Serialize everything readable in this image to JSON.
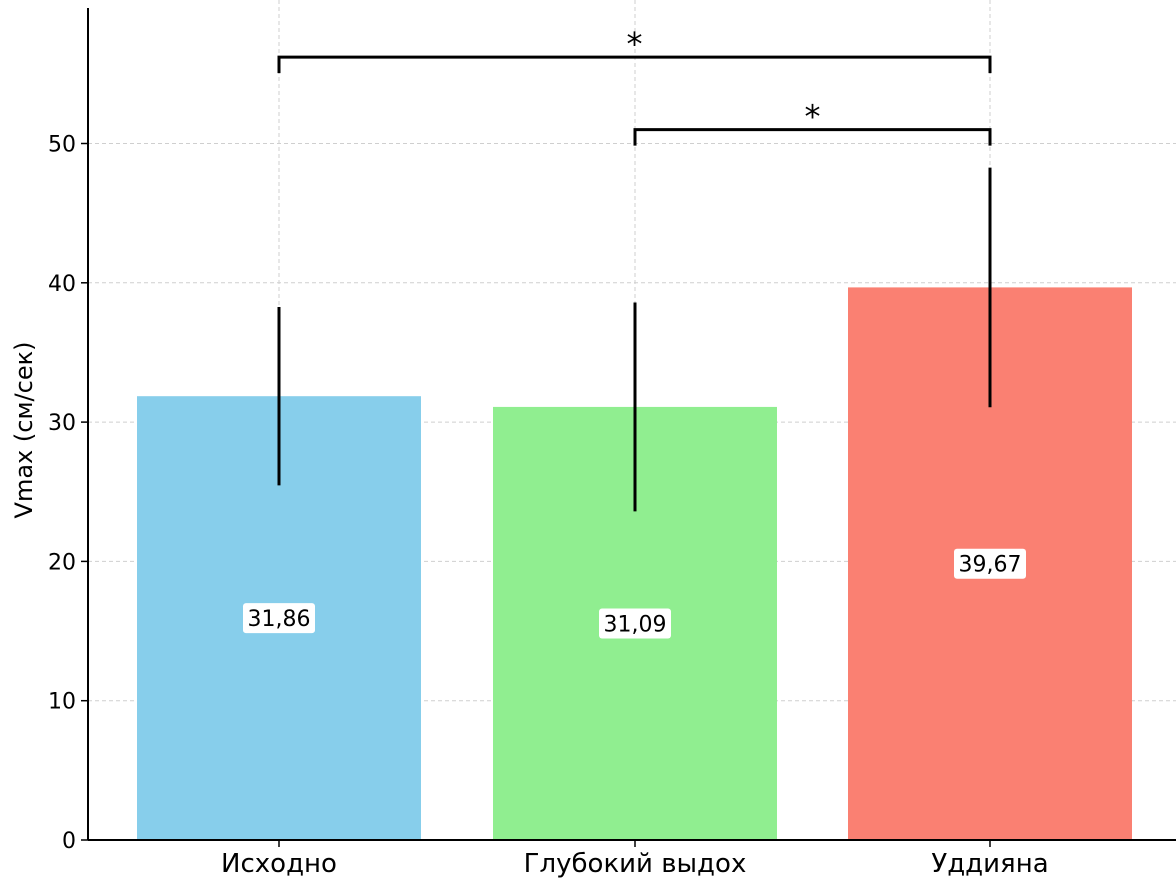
{
  "chart_data": {
    "type": "bar",
    "title": "",
    "xlabel": "",
    "ylabel": "Vmax (см/сек)",
    "ylim": [
      0,
      60
    ],
    "yticks": [
      0,
      10,
      20,
      30,
      40,
      50
    ],
    "grid": true,
    "categories": [
      "Исходно",
      "Глубокий выдох",
      "Уддияна"
    ],
    "values": [
      31.86,
      31.09,
      39.67
    ],
    "value_labels": [
      "31,86",
      "31,09",
      "39,67"
    ],
    "error": [
      6.4,
      7.5,
      8.6
    ],
    "colors": [
      "#87ceeb",
      "#90ee90",
      "#fa8072"
    ],
    "significance": [
      {
        "from": 0,
        "to": 2,
        "y": 56.2,
        "label": "*"
      },
      {
        "from": 1,
        "to": 2,
        "y": 51.0,
        "label": "*"
      }
    ]
  }
}
